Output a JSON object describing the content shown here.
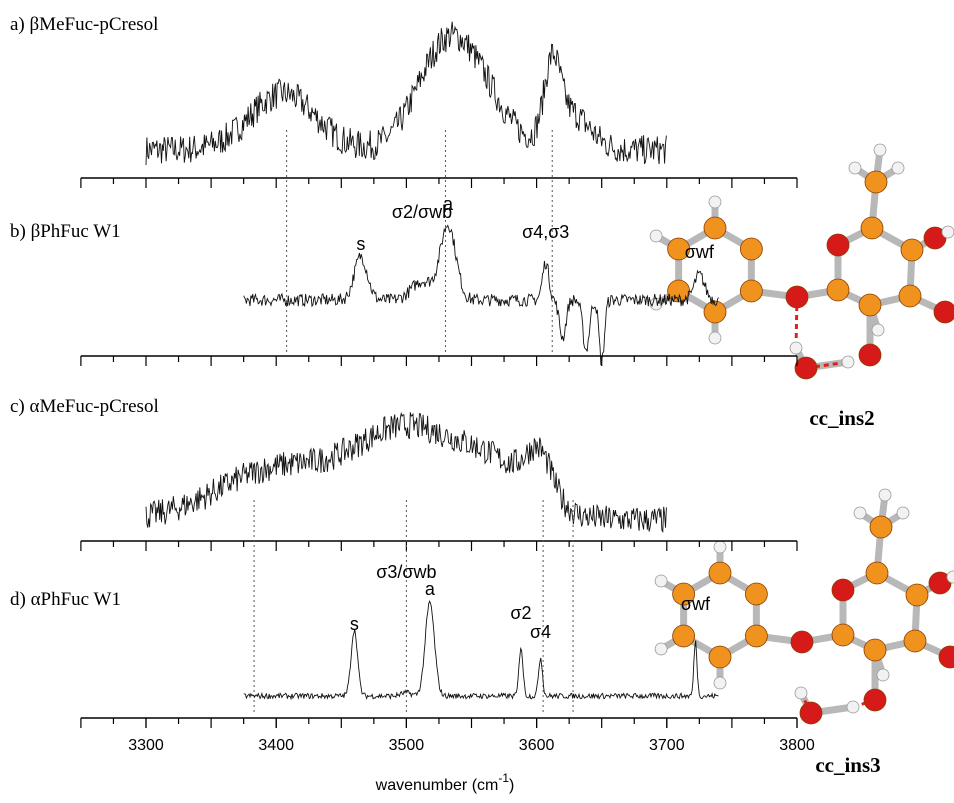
{
  "xaxis": {
    "xlim": [
      3250,
      3800
    ],
    "xticks": [
      3300,
      3400,
      3500,
      3600,
      3700,
      3800
    ],
    "label": "wavenumber (cm",
    "label_sup": "-1",
    "label_end": ")"
  },
  "panels": [
    {
      "label": "a) βMeFuc-pCresol",
      "range": [
        3300,
        3700
      ],
      "guides": [],
      "peaks": [
        {
          "x": 3405,
          "width": 25,
          "height": 0.45
        },
        {
          "x": 3530,
          "width": 22,
          "height": 0.8
        },
        {
          "x": 3560,
          "width": 20,
          "height": 0.3
        },
        {
          "x": 3612,
          "width": 6,
          "height": 0.55
        },
        {
          "x": 3625,
          "width": 15,
          "height": 0.3
        }
      ]
    },
    {
      "label": "b)  βPhFuc W1",
      "range": [
        3375,
        3740
      ],
      "guides": [
        3408,
        3530,
        3612
      ],
      "peaks": [
        {
          "label": "s",
          "x": 3465,
          "width": 5,
          "height": 0.35
        },
        {
          "label": "σ2/σwb",
          "x": 3512,
          "width": 8,
          "height": 0.15
        },
        {
          "label": "a",
          "x": 3532,
          "width": 6,
          "height": 0.6
        },
        {
          "label": "σ4,σ3",
          "x": 3607,
          "width": 2.5,
          "height": 0.3
        },
        {
          "x": 3620,
          "width": 2.5,
          "height": -0.3
        },
        {
          "x": 3638,
          "width": 2.5,
          "height": -0.4
        },
        {
          "x": 3650,
          "width": 2,
          "height": -0.5
        },
        {
          "label": "σwf",
          "x": 3725,
          "width": 4,
          "height": 0.2
        }
      ]
    },
    {
      "label": "c)  αMeFuc-pCresol",
      "range": [
        3300,
        3700
      ],
      "guides": [],
      "peaks": [
        {
          "x": 3400,
          "width": 45,
          "height": 0.4
        },
        {
          "x": 3500,
          "width": 40,
          "height": 0.7
        },
        {
          "x": 3570,
          "width": 30,
          "height": 0.35
        },
        {
          "x": 3602,
          "width": 10,
          "height": 0.35
        }
      ]
    },
    {
      "label": "d)  αPhFuc W1",
      "range": [
        3375,
        3740
      ],
      "guides": [
        3383,
        3500,
        3605,
        3628
      ],
      "peaks": [
        {
          "label": "s",
          "x": 3460,
          "width": 2.5,
          "height": 0.6
        },
        {
          "label": "σ3/σwb",
          "x": 3500,
          "width": 4,
          "height": 0.03
        },
        {
          "label": "a",
          "x": 3518,
          "width": 3.5,
          "height": 0.85
        },
        {
          "label": "σ2",
          "x": 3588,
          "width": 1.5,
          "height": 0.45
        },
        {
          "label": "σ4",
          "x": 3603,
          "width": 1.5,
          "height": 0.35
        },
        {
          "label": "σwf",
          "x": 3722,
          "width": 1.2,
          "height": 0.5
        }
      ]
    }
  ],
  "structures": [
    {
      "name": "cc_ins2"
    },
    {
      "name": "cc_ins3"
    }
  ]
}
